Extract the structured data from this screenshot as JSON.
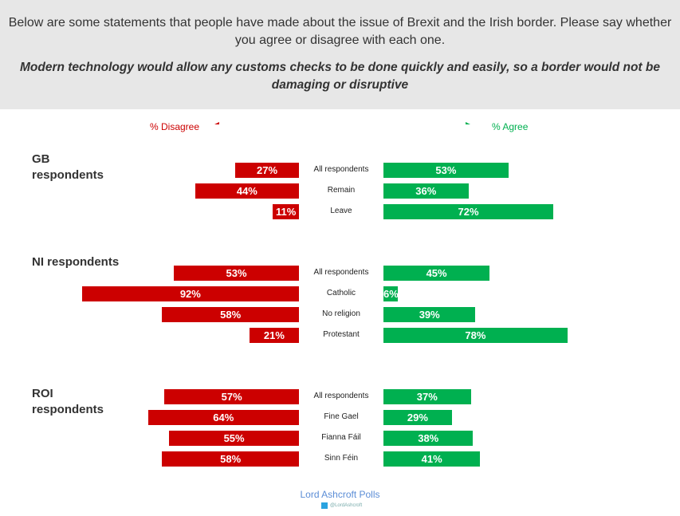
{
  "header": {
    "question": "Below are some statements that people have made about the issue of Brexit and the Irish border. Please say whether you agree or disagree with each one.",
    "statement": "Modern technology would allow any customs checks to be done quickly and easily, so a border would not be damaging or disruptive"
  },
  "footer": {
    "brand": "Lord Ashcroft Polls",
    "twitter": "@LordAshcroft"
  },
  "colors": {
    "disagree": "#cc0000",
    "agree": "#00b050"
  },
  "chart_data": {
    "type": "bar",
    "legend": {
      "disagree": "% Disagree",
      "agree": "% Agree"
    },
    "groups": [
      {
        "name": "GB respondents",
        "rows": [
          {
            "label": "All respondents",
            "disagree": 27,
            "agree": 53
          },
          {
            "label": "Remain",
            "disagree": 44,
            "agree": 36
          },
          {
            "label": "Leave",
            "disagree": 11,
            "agree": 72
          }
        ]
      },
      {
        "name": "NI respondents",
        "rows": [
          {
            "label": "All respondents",
            "disagree": 53,
            "agree": 45
          },
          {
            "label": "Catholic",
            "disagree": 92,
            "agree": 6
          },
          {
            "label": "No religion",
            "disagree": 58,
            "agree": 39
          },
          {
            "label": "Protestant",
            "disagree": 21,
            "agree": 78
          }
        ]
      },
      {
        "name": "ROI respondents",
        "rows": [
          {
            "label": "All respondents",
            "disagree": 57,
            "agree": 37
          },
          {
            "label": "Fine Gael",
            "disagree": 64,
            "agree": 29
          },
          {
            "label": "Fianna Fáil",
            "disagree": 55,
            "agree": 38
          },
          {
            "label": "Sinn Féin",
            "disagree": 58,
            "agree": 41
          }
        ]
      }
    ]
  }
}
